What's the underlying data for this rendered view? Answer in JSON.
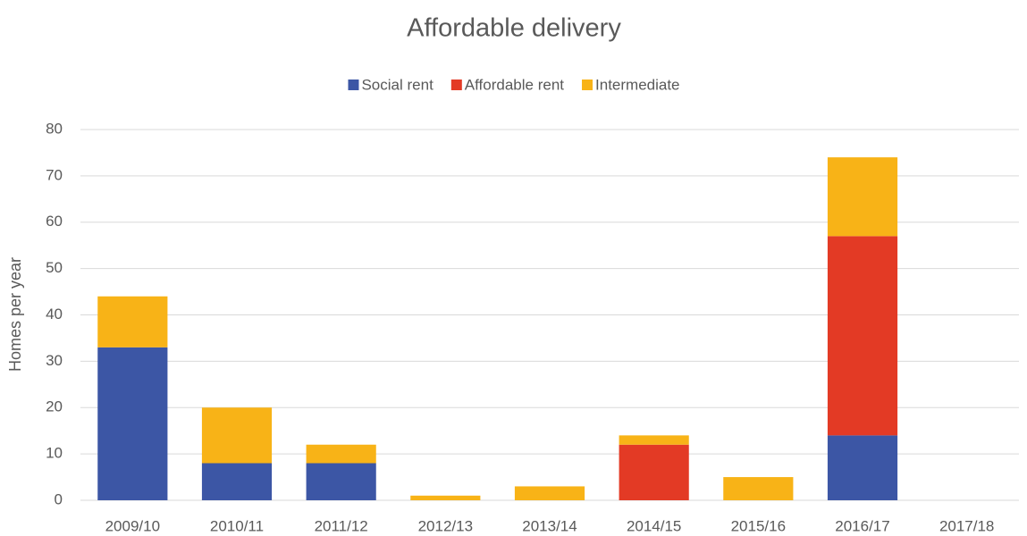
{
  "chart_data": {
    "type": "stacked_bar",
    "title": "Affordable delivery",
    "y_label": "Homes per year",
    "categories": [
      "2009/10",
      "2010/11",
      "2011/12",
      "2012/13",
      "2013/14",
      "2014/15",
      "2015/16",
      "2016/17",
      "2017/18"
    ],
    "series": [
      {
        "name": "Social rent",
        "color": "#3c56a5",
        "values": [
          33,
          8,
          8,
          0,
          0,
          0,
          0,
          14,
          0
        ]
      },
      {
        "name": "Affordable rent",
        "color": "#e33a25",
        "values": [
          0,
          0,
          0,
          0,
          0,
          12,
          0,
          43,
          0
        ]
      },
      {
        "name": "Intermediate",
        "color": "#f8b317",
        "values": [
          11,
          12,
          4,
          1,
          3,
          2,
          5,
          17,
          0
        ]
      }
    ],
    "ylim": [
      0,
      80
    ],
    "yticks": [
      0,
      10,
      20,
      30,
      40,
      50,
      60,
      70,
      80
    ],
    "grid": true,
    "legend": "top"
  }
}
